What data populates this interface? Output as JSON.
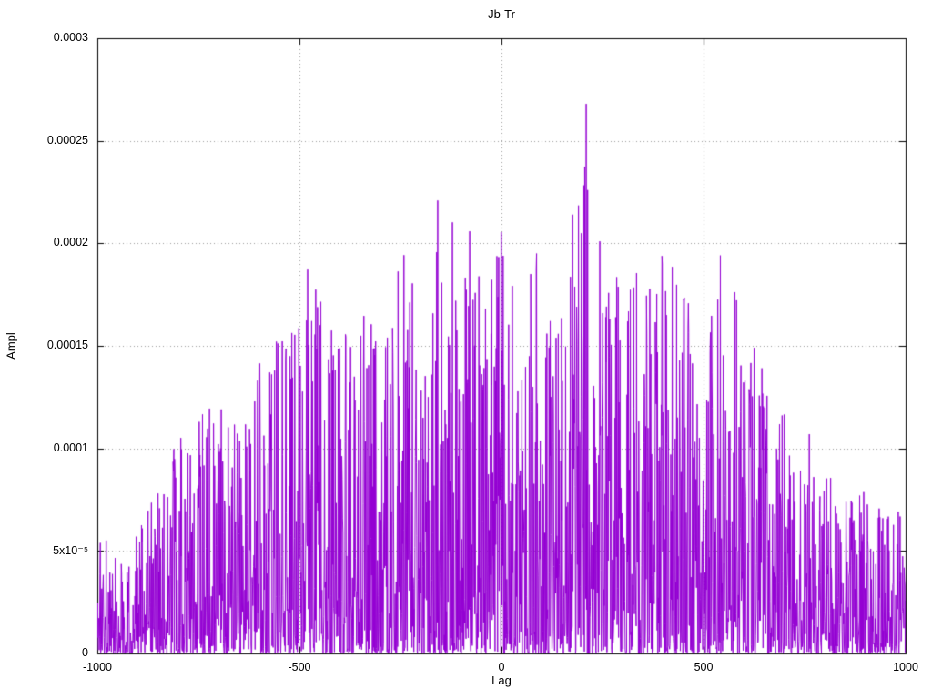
{
  "chart_data": {
    "type": "line",
    "subtype": "noisy-correlogram",
    "title": "Jb-Tr",
    "xlabel": "Lag",
    "ylabel": "Ampl",
    "xlim": [
      -1000,
      1000
    ],
    "ylim": [
      0,
      0.0003
    ],
    "grid": true,
    "legend": "none",
    "line_color": "#9400d3",
    "grid_color": "#9a9a9a",
    "border_color": "#000000",
    "background_color": "#ffffff",
    "x_ticks": [
      {
        "value": -1000,
        "label": "-1000"
      },
      {
        "value": -500,
        "label": "-500"
      },
      {
        "value": 0,
        "label": "0"
      },
      {
        "value": 500,
        "label": "500"
      },
      {
        "value": 1000,
        "label": "1000"
      }
    ],
    "y_ticks": [
      {
        "value": 0,
        "label": "0"
      },
      {
        "value": 5e-05,
        "label": "5x10⁻⁵"
      },
      {
        "value": 0.0001,
        "label": "0.0001"
      },
      {
        "value": 0.00015,
        "label": "0.00015"
      },
      {
        "value": 0.0002,
        "label": "0.0002"
      },
      {
        "value": 0.00025,
        "label": "0.00025"
      },
      {
        "value": 0.0003,
        "label": "0.0003"
      }
    ],
    "peak": {
      "x": 210,
      "y": 0.000268
    },
    "envelope_points": [
      [
        -1000,
        6.5e-05
      ],
      [
        -950,
        5.5e-05
      ],
      [
        -900,
        6e-05
      ],
      [
        -850,
        8e-05
      ],
      [
        -800,
        0.00011
      ],
      [
        -750,
        0.00012
      ],
      [
        -700,
        0.00014
      ],
      [
        -650,
        0.000105
      ],
      [
        -600,
        0.00015
      ],
      [
        -550,
        0.000155
      ],
      [
        -500,
        0.00016
      ],
      [
        -480,
        0.000198
      ],
      [
        -450,
        0.000175
      ],
      [
        -400,
        0.00016
      ],
      [
        -350,
        0.000165
      ],
      [
        -320,
        0.000178
      ],
      [
        -300,
        0.000145
      ],
      [
        -250,
        0.0002
      ],
      [
        -200,
        0.000185
      ],
      [
        -150,
        0.00023
      ],
      [
        -120,
        0.00023
      ],
      [
        -100,
        0.000225
      ],
      [
        -50,
        0.00019
      ],
      [
        0,
        0.00021
      ],
      [
        50,
        0.000175
      ],
      [
        100,
        0.00021
      ],
      [
        150,
        0.000195
      ],
      [
        200,
        0.000268
      ],
      [
        230,
        0.00021
      ],
      [
        260,
        0.00019
      ],
      [
        300,
        0.00019
      ],
      [
        350,
        0.00019
      ],
      [
        400,
        0.0002
      ],
      [
        450,
        0.000178
      ],
      [
        500,
        0.000155
      ],
      [
        540,
        0.000195
      ],
      [
        580,
        0.000175
      ],
      [
        620,
        0.00016
      ],
      [
        650,
        0.00014
      ],
      [
        700,
        0.00012
      ],
      [
        750,
        0.000115
      ],
      [
        800,
        9e-05
      ],
      [
        850,
        8e-05
      ],
      [
        900,
        8e-05
      ],
      [
        950,
        7e-05
      ],
      [
        1000,
        7e-05
      ]
    ],
    "noise": {
      "seed": 1337,
      "points": 2200,
      "exponent": 2.2,
      "spike_prob": 0.013
    }
  }
}
